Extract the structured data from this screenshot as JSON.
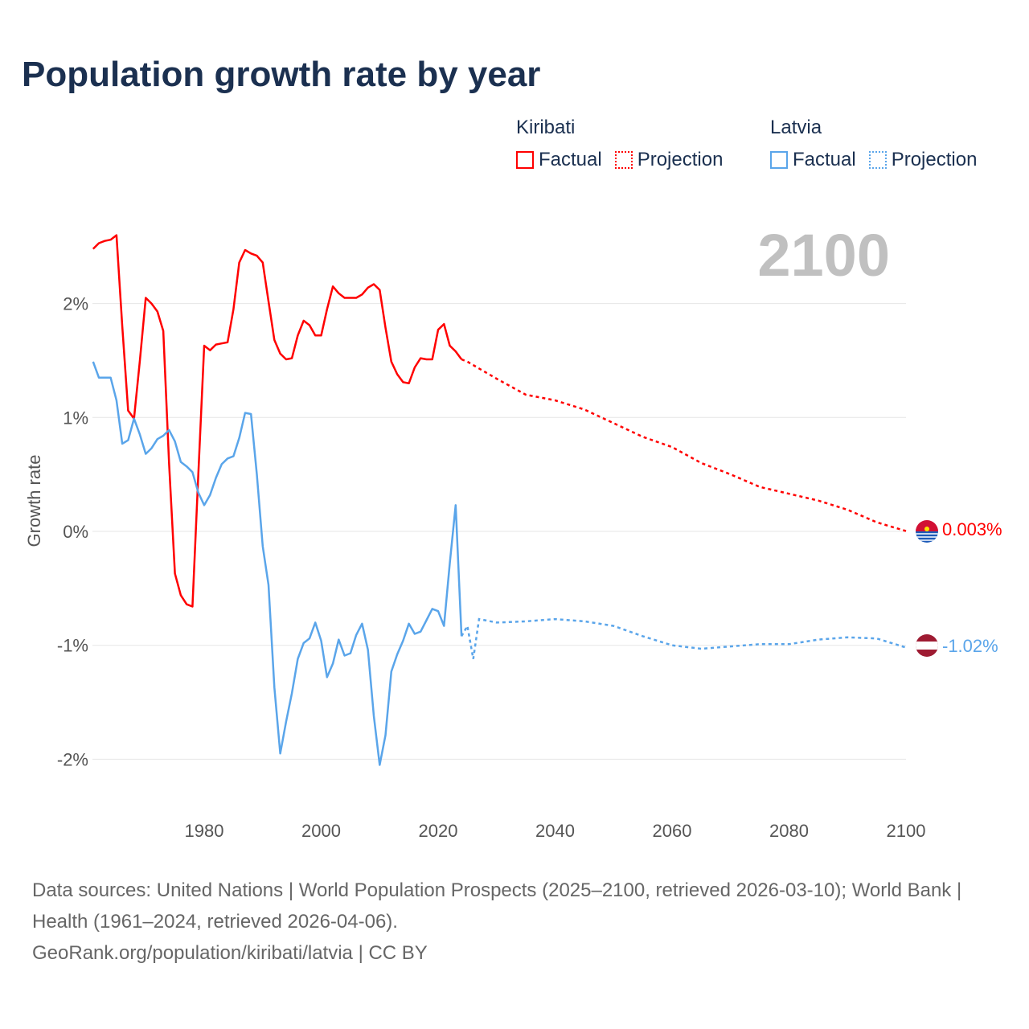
{
  "title": "Population growth rate by year",
  "watermark_year": "2100",
  "legend": [
    {
      "group": "Kiribati",
      "items": [
        {
          "label": "Factual",
          "style": "solid"
        },
        {
          "label": "Projection",
          "style": "dotted"
        }
      ],
      "color": "#ff0000"
    },
    {
      "group": "Latvia",
      "items": [
        {
          "label": "Factual",
          "style": "solid"
        },
        {
          "label": "Projection",
          "style": "dotted"
        }
      ],
      "color": "#5aa5ea"
    }
  ],
  "footer": {
    "sources": "Data sources: United Nations | World Population Prospects (2025–2100, retrieved 2026-03-10); World Bank | Health (1961–2024, retrieved 2026-04-06).",
    "credit": "GeoRank.org/population/kiribati/latvia | CC BY"
  },
  "chart_data": {
    "type": "line",
    "title": "Population growth rate by year",
    "xlabel": "",
    "ylabel": "Growth rate",
    "xlim": [
      1961,
      2100
    ],
    "ylim": [
      -2.5,
      2.7
    ],
    "x_ticks": [
      {
        "value": 1980,
        "label": "1980"
      },
      {
        "value": 2000,
        "label": "2000"
      },
      {
        "value": 2020,
        "label": "2020"
      },
      {
        "value": 2040,
        "label": "2040"
      },
      {
        "value": 2060,
        "label": "2060"
      },
      {
        "value": 2080,
        "label": "2080"
      },
      {
        "value": 2100,
        "label": "2100"
      }
    ],
    "y_ticks": [
      {
        "value": 2,
        "label": "2%"
      },
      {
        "value": 1,
        "label": "1%"
      },
      {
        "value": 0,
        "label": "0%"
      },
      {
        "value": -1,
        "label": "-1%"
      },
      {
        "value": -2,
        "label": "-2%"
      }
    ],
    "grid": true,
    "legend_position": "top-right",
    "series": [
      {
        "name": "Kiribati",
        "color": "#ff0000",
        "end_label": "0.003%",
        "flag": "kiribati-flag",
        "factual": {
          "x_start": 1961,
          "values": [
            2.48,
            2.53,
            2.55,
            2.56,
            2.6,
            1.8,
            1.06,
            0.99,
            1.5,
            2.05,
            2.0,
            1.93,
            1.76,
            0.6,
            -0.37,
            -0.56,
            -0.64,
            -0.66,
            0.5,
            1.63,
            1.59,
            1.64,
            1.65,
            1.66,
            1.95,
            2.36,
            2.47,
            2.44,
            2.42,
            2.36,
            2.02,
            1.68,
            1.56,
            1.51,
            1.52,
            1.72,
            1.85,
            1.81,
            1.72,
            1.72,
            1.95,
            2.15,
            2.09,
            2.05,
            2.05,
            2.05,
            2.08,
            2.14,
            2.17,
            2.12,
            1.79,
            1.49,
            1.38,
            1.31,
            1.3,
            1.44,
            1.52,
            1.51,
            1.51,
            1.77,
            1.82,
            1.63,
            1.58,
            1.51
          ]
        },
        "projection": {
          "x": [
            2024,
            2025,
            2030,
            2035,
            2040,
            2045,
            2050,
            2055,
            2060,
            2065,
            2070,
            2075,
            2080,
            2085,
            2090,
            2095,
            2100
          ],
          "values": [
            1.51,
            1.49,
            1.34,
            1.2,
            1.15,
            1.07,
            0.95,
            0.83,
            0.74,
            0.6,
            0.5,
            0.39,
            0.33,
            0.27,
            0.19,
            0.08,
            0.003
          ]
        }
      },
      {
        "name": "Latvia",
        "color": "#5aa5ea",
        "end_label": "-1.02%",
        "flag": "latvia-flag",
        "factual": {
          "x_start": 1961,
          "values": [
            1.49,
            1.35,
            1.35,
            1.35,
            1.15,
            0.77,
            0.8,
            0.99,
            0.85,
            0.68,
            0.73,
            0.81,
            0.84,
            0.89,
            0.79,
            0.61,
            0.57,
            0.52,
            0.34,
            0.23,
            0.32,
            0.47,
            0.59,
            0.64,
            0.66,
            0.82,
            1.04,
            1.03,
            0.5,
            -0.13,
            -0.47,
            -1.37,
            -1.95,
            -1.67,
            -1.42,
            -1.12,
            -0.98,
            -0.94,
            -0.8,
            -0.96,
            -1.28,
            -1.16,
            -0.95,
            -1.09,
            -1.07,
            -0.91,
            -0.81,
            -1.04,
            -1.62,
            -2.05,
            -1.79,
            -1.23,
            -1.08,
            -0.96,
            -0.81,
            -0.9,
            -0.88,
            -0.78,
            -0.68,
            -0.7,
            -0.83,
            -0.28,
            0.23,
            -0.92
          ]
        },
        "projection": {
          "x": [
            2024,
            2025,
            2026,
            2027,
            2030,
            2035,
            2040,
            2045,
            2050,
            2055,
            2060,
            2065,
            2070,
            2075,
            2080,
            2085,
            2090,
            2095,
            2100
          ],
          "values": [
            -0.92,
            -0.83,
            -1.12,
            -0.77,
            -0.8,
            -0.79,
            -0.77,
            -0.79,
            -0.83,
            -0.92,
            -1.0,
            -1.03,
            -1.01,
            -0.99,
            -0.99,
            -0.95,
            -0.93,
            -0.94,
            -1.02
          ]
        }
      }
    ]
  }
}
